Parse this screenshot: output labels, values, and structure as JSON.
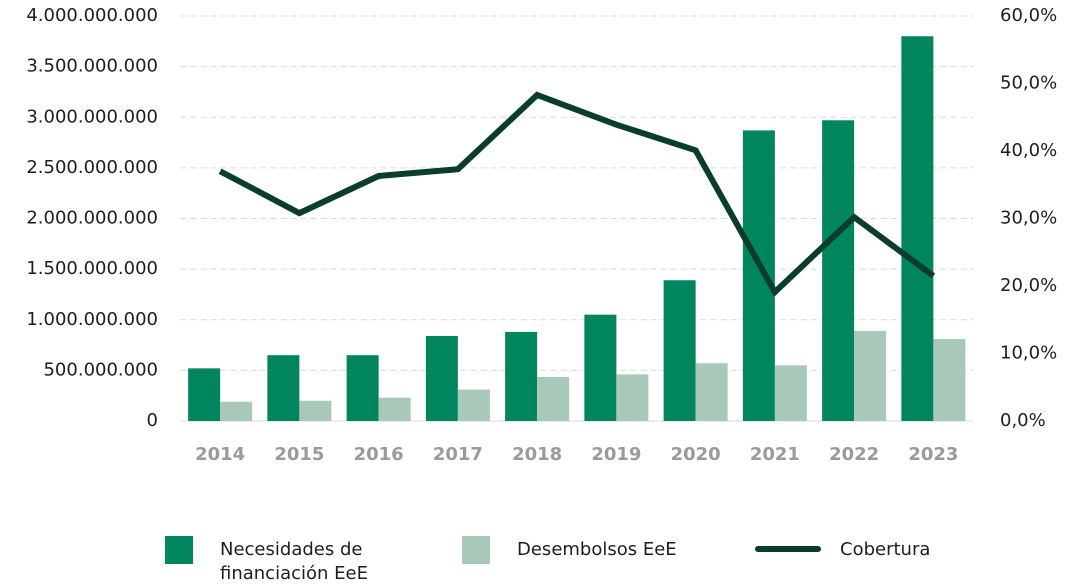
{
  "chart_data": {
    "type": "bar",
    "categories": [
      "2014",
      "2015",
      "2016",
      "2017",
      "2018",
      "2019",
      "2020",
      "2021",
      "2022",
      "2023"
    ],
    "series": [
      {
        "name": "Necesidades de financiación EeE",
        "color": "#00855f",
        "values": [
          520000000,
          650000000,
          650000000,
          840000000,
          880000000,
          1050000000,
          1390000000,
          2870000000,
          2970000000,
          3800000000
        ]
      },
      {
        "name": "Desembolsos EeE",
        "color": "#a8c8b8",
        "values": [
          190000000,
          200000000,
          230000000,
          310000000,
          435000000,
          460000000,
          570000000,
          550000000,
          890000000,
          810000000
        ]
      },
      {
        "name": "Cobertura",
        "color": "#0b3d2c",
        "type": "line",
        "axis": "y2",
        "values": [
          37.0,
          30.8,
          36.3,
          37.3,
          48.3,
          43.9,
          40.1,
          19.1,
          30.2,
          21.5
        ]
      }
    ],
    "ylim": [
      0,
      4000000000
    ],
    "yticks": [
      0,
      {
        "value": 500000000,
        "label": "500.000.000"
      },
      {
        "value": 1000000000,
        "label": "1.000.000.000"
      },
      {
        "value": 1500000000,
        "label": "1.500.000.000"
      },
      {
        "value": 2000000000,
        "label": "2.000.000.000"
      },
      {
        "value": 2500000000,
        "label": "2.500.000.000"
      },
      {
        "value": 3000000000,
        "label": "3.000.000.000"
      },
      {
        "value": 3500000000,
        "label": "3.500.000.000"
      },
      {
        "value": 4000000000,
        "label": "4.000.000.000"
      }
    ],
    "y2lim": [
      0,
      60
    ],
    "y2ticks": [
      {
        "value": 0,
        "label": "0,0%"
      },
      {
        "value": 10,
        "label": "10,0%"
      },
      {
        "value": 20,
        "label": "20,0%"
      },
      {
        "value": 30,
        "label": "30,0%"
      },
      {
        "value": 40,
        "label": "40,0%"
      },
      {
        "value": 50,
        "label": "50,0%"
      },
      {
        "value": 60,
        "label": "60,0%"
      }
    ],
    "grid": true,
    "legend": "bottom"
  }
}
